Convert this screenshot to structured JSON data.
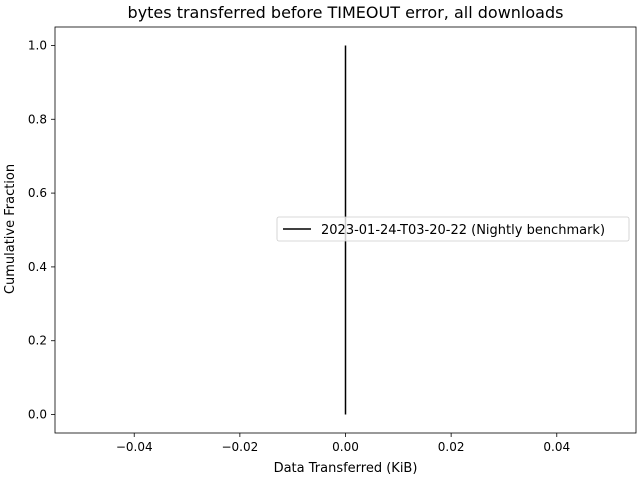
{
  "chart_data": {
    "type": "line",
    "title": "bytes transferred before TIMEOUT error, all downloads",
    "xlabel": "Data Transferred (KiB)",
    "ylabel": "Cumulative Fraction",
    "xlim": [
      -0.055,
      0.055
    ],
    "ylim": [
      -0.05,
      1.05
    ],
    "xticks": [
      -0.04,
      -0.02,
      0.0,
      0.02,
      0.04
    ],
    "xtick_labels": [
      "−0.04",
      "−0.02",
      "0.00",
      "0.02",
      "0.04"
    ],
    "yticks": [
      0.0,
      0.2,
      0.4,
      0.6,
      0.8,
      1.0
    ],
    "ytick_labels": [
      "0.0",
      "0.2",
      "0.4",
      "0.6",
      "0.8",
      "1.0"
    ],
    "grid": false,
    "legend_position": "center-right",
    "series": [
      {
        "name": "2023-01-24-T03-20-22 (Nightly benchmark)",
        "color": "#000000",
        "x": [
          0.0,
          0.0
        ],
        "y": [
          0.0,
          1.0
        ]
      }
    ]
  }
}
